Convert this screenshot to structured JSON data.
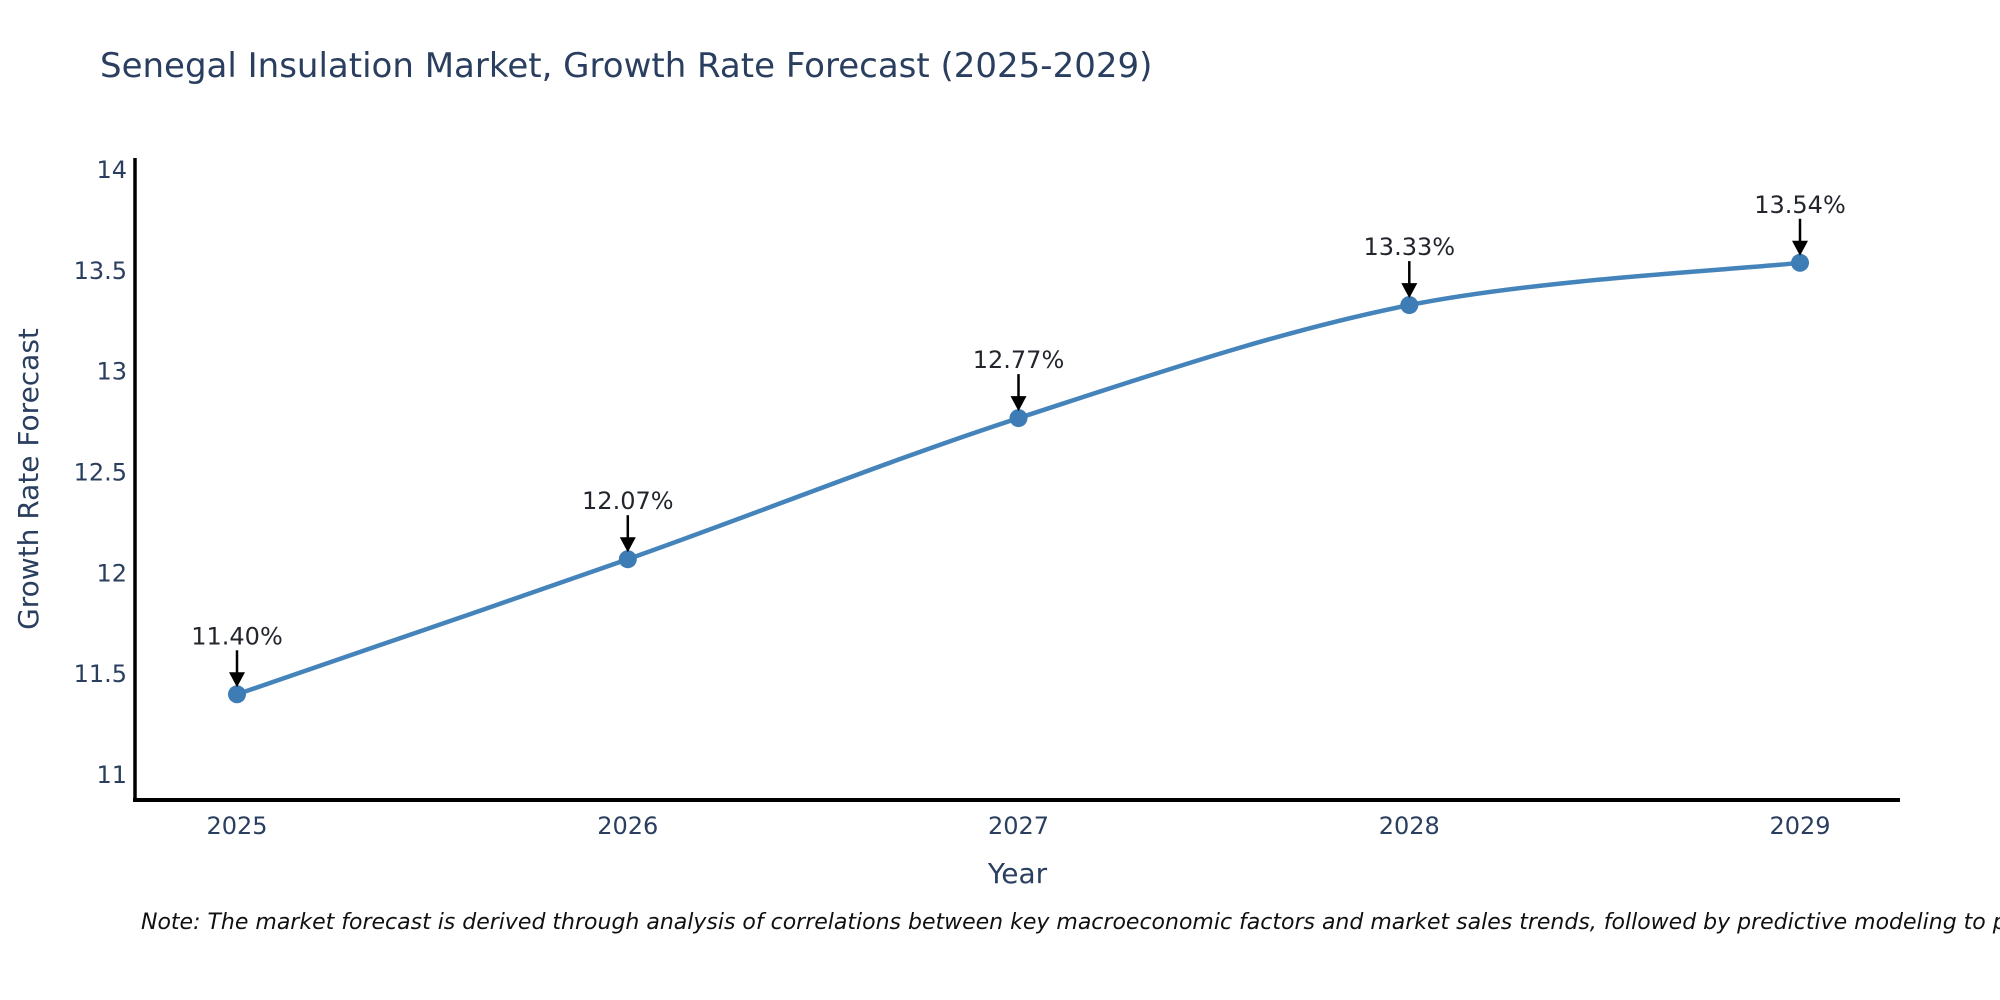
{
  "chart_data": {
    "type": "line",
    "title": "Senegal Insulation Market, Growth Rate Forecast (2025-2029)",
    "xlabel": "Year",
    "ylabel": "Growth Rate Forecast",
    "x": [
      2025,
      2026,
      2027,
      2028,
      2029
    ],
    "series": [
      {
        "name": "Growth Rate Forecast",
        "values": [
          11.4,
          12.07,
          12.77,
          13.33,
          13.54
        ]
      }
    ],
    "point_labels": [
      "11.40%",
      "12.07%",
      "12.77%",
      "13.33%",
      "13.54%"
    ],
    "x_tick_labels": [
      "2025",
      "2026",
      "2027",
      "2028",
      "2029"
    ],
    "y_tick_labels": [
      "11",
      "11.5",
      "12",
      "12.5",
      "13",
      "13.5",
      "14"
    ],
    "y_tick_values": [
      11,
      11.5,
      12,
      12.5,
      13,
      13.5,
      14
    ],
    "ylim": [
      10.88,
      14.05
    ],
    "xlim": [
      2024.74,
      2029.26
    ],
    "grid": false,
    "legend_position": "none",
    "line_shape": "spline",
    "colors": {
      "line": "#4484bb",
      "marker": "#3d7cb4",
      "axis": "#000000",
      "tick_label": "#2a3f5f",
      "title": "#2a3f5f",
      "annotation_text": "#22262c",
      "arrow": "#000000"
    }
  },
  "note": {
    "text": "Note: The market forecast is derived through analysis of correlations between key macroeconomic factors and market sales trends, followed by predictive modeling to project future sal"
  }
}
